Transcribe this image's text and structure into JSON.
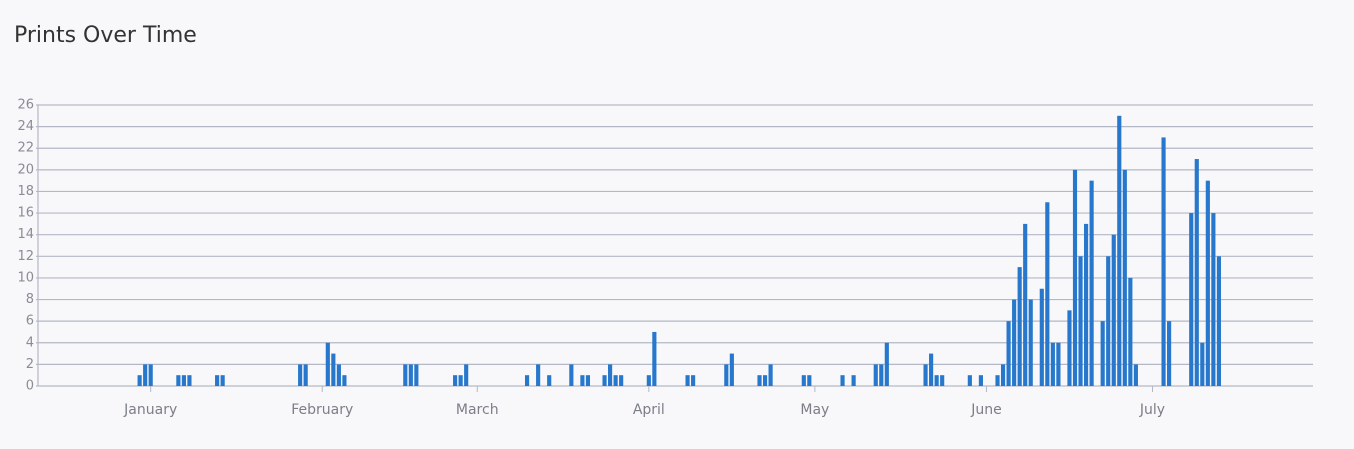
{
  "chart_data": {
    "type": "bar",
    "title": "Prints Over Time",
    "x": [
      -2,
      -1,
      0,
      5,
      6,
      7,
      12,
      13,
      27,
      28,
      32,
      33,
      34,
      35,
      46,
      47,
      48,
      55,
      56,
      57,
      68,
      70,
      72,
      76,
      78,
      79,
      82,
      83,
      84,
      85,
      90,
      91,
      97,
      98,
      104,
      105,
      110,
      111,
      112,
      118,
      119,
      125,
      127,
      131,
      132,
      133,
      140,
      141,
      142,
      143,
      148,
      150,
      153,
      154,
      155,
      156,
      157,
      158,
      159,
      161,
      162,
      163,
      164,
      166,
      167,
      168,
      169,
      170,
      172,
      173,
      174,
      175,
      176,
      177,
      178,
      183,
      184,
      188,
      189,
      190,
      191,
      192,
      193
    ],
    "values": [
      1,
      2,
      2,
      1,
      1,
      1,
      1,
      1,
      2,
      2,
      4,
      3,
      2,
      1,
      2,
      2,
      2,
      1,
      1,
      2,
      1,
      2,
      1,
      2,
      1,
      1,
      1,
      2,
      1,
      1,
      1,
      5,
      1,
      1,
      2,
      3,
      1,
      1,
      2,
      1,
      1,
      1,
      1,
      2,
      2,
      4,
      2,
      3,
      1,
      1,
      1,
      1,
      1,
      2,
      6,
      8,
      11,
      15,
      8,
      9,
      17,
      4,
      4,
      7,
      20,
      12,
      15,
      19,
      6,
      12,
      14,
      25,
      20,
      10,
      2,
      23,
      6,
      16,
      21,
      4,
      19,
      16,
      12
    ],
    "color": "#2778cc",
    "xlim": [
      -20,
      210
    ],
    "xticks": [
      {
        "value": 0,
        "label": "January"
      },
      {
        "value": 31,
        "label": "February"
      },
      {
        "value": 59,
        "label": "March"
      },
      {
        "value": 90,
        "label": "April"
      },
      {
        "value": 120,
        "label": "May"
      },
      {
        "value": 151,
        "label": "June"
      },
      {
        "value": 181,
        "label": "July"
      }
    ],
    "ylim": [
      0,
      26
    ],
    "yticks": [
      0,
      2,
      4,
      6,
      8,
      10,
      12,
      14,
      16,
      18,
      20,
      22,
      24,
      26
    ],
    "grid": true
  }
}
